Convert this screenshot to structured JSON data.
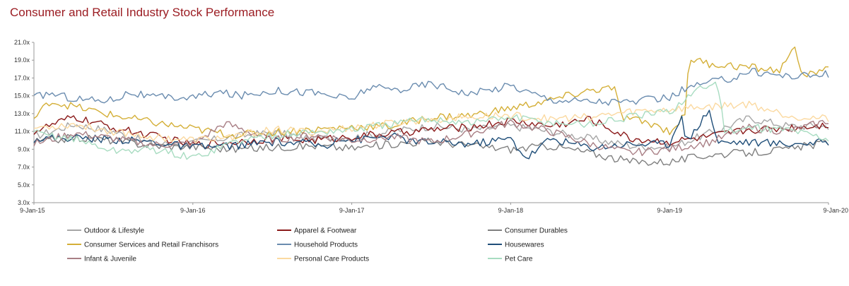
{
  "chart_data": {
    "type": "line",
    "title": "Consumer and Retail Industry Stock Performance",
    "xlabel": "",
    "ylabel": "",
    "x_ticks": [
      "9-Jan-15",
      "9-Jan-16",
      "9-Jan-17",
      "9-Jan-18",
      "9-Jan-19",
      "9-Jan-20"
    ],
    "x_range": [
      2015.0,
      2020.0
    ],
    "y_ticks": [
      "3.0x",
      "5.0x",
      "7.0x",
      "9.0x",
      "11.0x",
      "13.0x",
      "15.0x",
      "17.0x",
      "19.0x",
      "21.0x"
    ],
    "ylim": [
      3.0,
      21.0
    ],
    "grid": false,
    "legend_position": "bottom",
    "legend_columns": 3,
    "series": [
      {
        "name": "Outdoor & Lifestyle",
        "color": "#a6a6a6",
        "points": [
          [
            2015.0,
            10.4
          ],
          [
            2015.25,
            11.8
          ],
          [
            2015.5,
            11.0
          ],
          [
            2015.75,
            9.6
          ],
          [
            2016.0,
            9.7
          ],
          [
            2016.25,
            10.4
          ],
          [
            2016.5,
            10.9
          ],
          [
            2016.75,
            10.2
          ],
          [
            2017.0,
            10.3
          ],
          [
            2017.25,
            11.0
          ],
          [
            2017.5,
            11.6
          ],
          [
            2017.75,
            11.2
          ],
          [
            2018.0,
            11.6
          ],
          [
            2018.25,
            11.0
          ],
          [
            2018.5,
            10.2
          ],
          [
            2018.75,
            9.4
          ],
          [
            2019.0,
            9.2
          ],
          [
            2019.25,
            10.8
          ],
          [
            2019.5,
            12.5
          ],
          [
            2019.75,
            11.6
          ],
          [
            2020.0,
            11.6
          ]
        ]
      },
      {
        "name": "Apparel & Footwear",
        "color": "#8b1a1a",
        "points": [
          [
            2015.0,
            11.0
          ],
          [
            2015.25,
            12.6
          ],
          [
            2015.5,
            11.4
          ],
          [
            2015.75,
            10.5
          ],
          [
            2016.0,
            9.5
          ],
          [
            2016.25,
            9.8
          ],
          [
            2016.5,
            10.2
          ],
          [
            2016.75,
            10.0
          ],
          [
            2017.0,
            10.4
          ],
          [
            2017.25,
            10.8
          ],
          [
            2017.5,
            11.2
          ],
          [
            2017.75,
            11.5
          ],
          [
            2018.0,
            12.2
          ],
          [
            2018.25,
            11.6
          ],
          [
            2018.5,
            12.4
          ],
          [
            2018.75,
            10.2
          ],
          [
            2019.0,
            9.8
          ],
          [
            2019.25,
            10.4
          ],
          [
            2019.5,
            11.2
          ],
          [
            2019.75,
            11.4
          ],
          [
            2020.0,
            11.8
          ]
        ]
      },
      {
        "name": "Consumer Durables",
        "color": "#7f7f7f",
        "points": [
          [
            2015.0,
            9.8
          ],
          [
            2015.25,
            10.3
          ],
          [
            2015.5,
            10.0
          ],
          [
            2015.75,
            9.4
          ],
          [
            2016.0,
            9.3
          ],
          [
            2016.25,
            9.0
          ],
          [
            2016.5,
            9.2
          ],
          [
            2016.75,
            9.4
          ],
          [
            2017.0,
            9.1
          ],
          [
            2017.25,
            9.6
          ],
          [
            2017.5,
            9.9
          ],
          [
            2017.75,
            9.4
          ],
          [
            2018.0,
            9.0
          ],
          [
            2018.25,
            9.4
          ],
          [
            2018.5,
            8.6
          ],
          [
            2018.75,
            7.6
          ],
          [
            2019.0,
            7.6
          ],
          [
            2019.25,
            8.4
          ],
          [
            2019.5,
            8.6
          ],
          [
            2019.75,
            9.0
          ],
          [
            2020.0,
            9.8
          ]
        ]
      },
      {
        "name": "Consumer Services and Retail Franchisors",
        "color": "#d4af37",
        "points": [
          [
            2015.0,
            12.4
          ],
          [
            2015.1,
            14.4
          ],
          [
            2015.25,
            13.8
          ],
          [
            2015.5,
            12.8
          ],
          [
            2015.75,
            12.0
          ],
          [
            2016.0,
            11.3
          ],
          [
            2016.25,
            10.6
          ],
          [
            2016.5,
            10.9
          ],
          [
            2016.75,
            11.2
          ],
          [
            2017.0,
            11.5
          ],
          [
            2017.25,
            11.6
          ],
          [
            2017.5,
            12.6
          ],
          [
            2017.75,
            12.8
          ],
          [
            2018.0,
            13.6
          ],
          [
            2018.25,
            14.5
          ],
          [
            2018.5,
            15.6
          ],
          [
            2018.65,
            15.9
          ],
          [
            2018.7,
            12.6
          ],
          [
            2018.9,
            11.8
          ],
          [
            2019.0,
            11.0
          ],
          [
            2019.1,
            12.8
          ],
          [
            2019.12,
            19.2
          ],
          [
            2019.25,
            18.6
          ],
          [
            2019.5,
            18.2
          ],
          [
            2019.7,
            17.8
          ],
          [
            2019.78,
            21.0
          ],
          [
            2019.82,
            17.4
          ],
          [
            2019.9,
            17.4
          ],
          [
            2020.0,
            18.6
          ]
        ]
      },
      {
        "name": "Household Products",
        "color": "#6a8caf",
        "points": [
          [
            2015.0,
            14.8
          ],
          [
            2015.1,
            15.3
          ],
          [
            2015.25,
            14.7
          ],
          [
            2015.4,
            14.5
          ],
          [
            2015.5,
            14.6
          ],
          [
            2015.6,
            15.4
          ],
          [
            2015.75,
            14.8
          ],
          [
            2016.0,
            14.8
          ],
          [
            2016.15,
            15.4
          ],
          [
            2016.3,
            15.0
          ],
          [
            2016.5,
            15.6
          ],
          [
            2016.75,
            15.4
          ],
          [
            2017.0,
            14.6
          ],
          [
            2017.1,
            15.9
          ],
          [
            2017.3,
            15.7
          ],
          [
            2017.5,
            16.4
          ],
          [
            2017.75,
            15.2
          ],
          [
            2018.0,
            16.2
          ],
          [
            2018.1,
            15.5
          ],
          [
            2018.25,
            14.6
          ],
          [
            2018.5,
            14.4
          ],
          [
            2018.75,
            14.3
          ],
          [
            2019.0,
            14.8
          ],
          [
            2019.1,
            15.8
          ],
          [
            2019.25,
            16.5
          ],
          [
            2019.4,
            17.0
          ],
          [
            2019.5,
            17.8
          ],
          [
            2019.75,
            17.2
          ],
          [
            2020.0,
            17.4
          ]
        ]
      },
      {
        "name": "Housewares",
        "color": "#1f4e79",
        "points": [
          [
            2015.0,
            10.2
          ],
          [
            2015.25,
            10.3
          ],
          [
            2015.5,
            10.1
          ],
          [
            2015.75,
            9.8
          ],
          [
            2016.0,
            9.2
          ],
          [
            2016.25,
            9.4
          ],
          [
            2016.5,
            9.8
          ],
          [
            2016.75,
            9.6
          ],
          [
            2016.85,
            9.2
          ],
          [
            2016.9,
            10.4
          ],
          [
            2017.0,
            10.0
          ],
          [
            2017.25,
            10.5
          ],
          [
            2017.4,
            9.8
          ],
          [
            2017.5,
            9.8
          ],
          [
            2017.75,
            9.6
          ],
          [
            2018.0,
            10.2
          ],
          [
            2018.1,
            8.0
          ],
          [
            2018.25,
            10.2
          ],
          [
            2018.5,
            9.2
          ],
          [
            2018.75,
            9.6
          ],
          [
            2019.0,
            9.6
          ],
          [
            2019.08,
            13.3
          ],
          [
            2019.1,
            9.6
          ],
          [
            2019.25,
            13.5
          ],
          [
            2019.3,
            9.8
          ],
          [
            2019.5,
            9.8
          ],
          [
            2019.75,
            9.6
          ],
          [
            2020.0,
            9.8
          ]
        ]
      },
      {
        "name": "Infant & Juvenile",
        "color": "#a97f85",
        "points": [
          [
            2015.0,
            9.6
          ],
          [
            2015.25,
            10.8
          ],
          [
            2015.5,
            10.2
          ],
          [
            2015.75,
            9.5
          ],
          [
            2016.0,
            9.6
          ],
          [
            2016.2,
            11.9
          ],
          [
            2016.35,
            11.0
          ],
          [
            2016.5,
            10.0
          ],
          [
            2016.75,
            10.6
          ],
          [
            2017.0,
            10.0
          ],
          [
            2017.25,
            10.4
          ],
          [
            2017.5,
            9.8
          ],
          [
            2017.75,
            10.8
          ],
          [
            2018.0,
            12.0
          ],
          [
            2018.25,
            11.0
          ],
          [
            2018.5,
            9.6
          ],
          [
            2018.75,
            8.6
          ],
          [
            2019.0,
            9.0
          ],
          [
            2019.25,
            9.8
          ],
          [
            2019.5,
            11.4
          ],
          [
            2019.75,
            11.0
          ],
          [
            2020.0,
            12.2
          ]
        ]
      },
      {
        "name": "Personal Care Products",
        "color": "#fbd9a0",
        "points": [
          [
            2015.0,
            11.4
          ],
          [
            2015.25,
            11.8
          ],
          [
            2015.5,
            11.0
          ],
          [
            2015.75,
            10.4
          ],
          [
            2016.0,
            10.0
          ],
          [
            2016.25,
            10.4
          ],
          [
            2016.5,
            11.2
          ],
          [
            2016.75,
            10.9
          ],
          [
            2017.0,
            11.4
          ],
          [
            2017.25,
            11.9
          ],
          [
            2017.5,
            12.4
          ],
          [
            2017.75,
            12.6
          ],
          [
            2018.0,
            12.8
          ],
          [
            2018.25,
            12.4
          ],
          [
            2018.5,
            12.6
          ],
          [
            2018.75,
            13.2
          ],
          [
            2019.0,
            13.5
          ],
          [
            2019.25,
            13.8
          ],
          [
            2019.5,
            14.1
          ],
          [
            2019.75,
            12.8
          ],
          [
            2020.0,
            12.4
          ]
        ]
      },
      {
        "name": "Pet Care",
        "color": "#a8dcc1",
        "points": [
          [
            2015.0,
            10.8
          ],
          [
            2015.25,
            10.2
          ],
          [
            2015.5,
            8.8
          ],
          [
            2015.75,
            9.0
          ],
          [
            2016.0,
            8.0
          ],
          [
            2016.25,
            9.8
          ],
          [
            2016.5,
            10.6
          ],
          [
            2016.75,
            10.9
          ],
          [
            2017.0,
            11.2
          ],
          [
            2017.25,
            11.8
          ],
          [
            2017.5,
            12.4
          ],
          [
            2017.75,
            12.0
          ],
          [
            2018.0,
            12.6
          ],
          [
            2018.25,
            12.0
          ],
          [
            2018.5,
            11.8
          ],
          [
            2018.75,
            12.6
          ],
          [
            2019.0,
            13.2
          ],
          [
            2019.15,
            15.4
          ],
          [
            2019.3,
            16.6
          ],
          [
            2019.35,
            10.8
          ],
          [
            2019.5,
            11.4
          ],
          [
            2019.75,
            11.2
          ],
          [
            2020.0,
            10.2
          ]
        ]
      }
    ]
  }
}
